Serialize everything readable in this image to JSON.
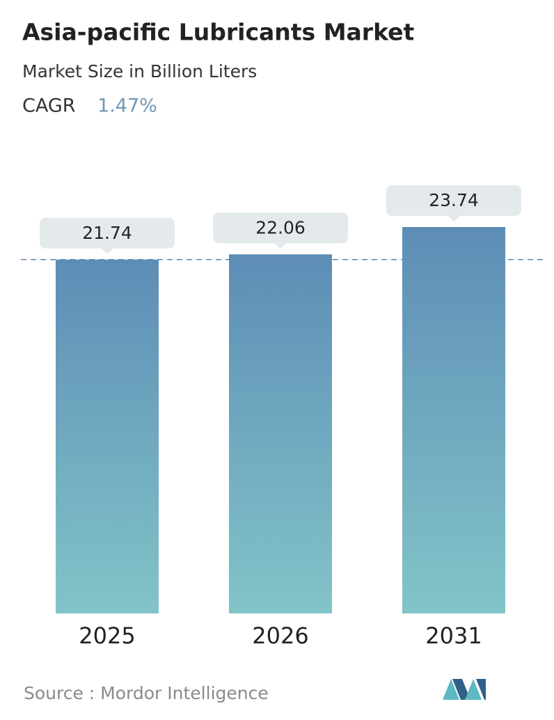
{
  "chart_data": {
    "type": "bar",
    "title": "Asia-pacific Lubricants Market",
    "subtitle": "Market Size in Billion Liters",
    "cagr_label": "CAGR",
    "cagr_value": "1.47%",
    "categories": [
      "2025",
      "2026",
      "2031"
    ],
    "values": [
      21.74,
      22.06,
      23.74
    ],
    "color_top": "#5d8db6",
    "color_bottom": "#82c4c8",
    "source": "Source :  Mordor Intelligence"
  }
}
